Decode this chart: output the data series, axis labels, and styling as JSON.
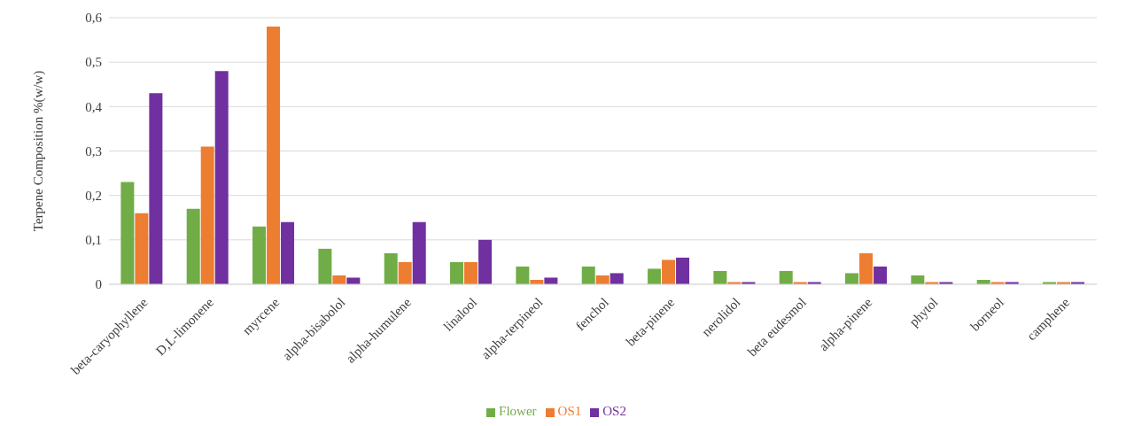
{
  "chart_data": {
    "type": "bar",
    "ylabel": "Terpene Composition %(w/w)",
    "categories": [
      "beta-caryophyllene",
      "D,L-limonene",
      "myrcene",
      "alpha-bisabolol",
      "alpha-humulene",
      "linalool",
      "alpha-terpineol",
      "fenchol",
      "beta-pinene",
      "nerolidol",
      "beta eudesmol",
      "alpha-pinene",
      "phytol",
      "borneol",
      "camphene"
    ],
    "series": [
      {
        "name": "Flower",
        "color": "#70ad47",
        "values": [
          0.23,
          0.17,
          0.13,
          0.08,
          0.07,
          0.05,
          0.04,
          0.04,
          0.035,
          0.03,
          0.03,
          0.025,
          0.02,
          0.01,
          0.005
        ]
      },
      {
        "name": "OS1",
        "color": "#ed7d31",
        "values": [
          0.16,
          0.31,
          0.58,
          0.02,
          0.05,
          0.05,
          0.01,
          0.02,
          0.055,
          0.005,
          0.005,
          0.07,
          0.005,
          0.005,
          0.005
        ]
      },
      {
        "name": "OS2",
        "color": "#7030a0",
        "values": [
          0.43,
          0.48,
          0.14,
          0.015,
          0.14,
          0.1,
          0.015,
          0.025,
          0.06,
          0.005,
          0.005,
          0.04,
          0.005,
          0.005,
          0.005
        ]
      }
    ],
    "ylim": [
      0,
      0.6
    ],
    "yticks": [
      0,
      {
        "value": 0.1,
        "label": "0,1"
      },
      {
        "value": 0.2,
        "label": "0,2"
      },
      {
        "value": 0.3,
        "label": "0,3"
      },
      {
        "value": 0.4,
        "label": "0,4"
      },
      {
        "value": 0.5,
        "label": "0,5"
      },
      {
        "value": 0.6,
        "label": "0,6"
      }
    ],
    "grid": "y",
    "legend": "bottom"
  }
}
